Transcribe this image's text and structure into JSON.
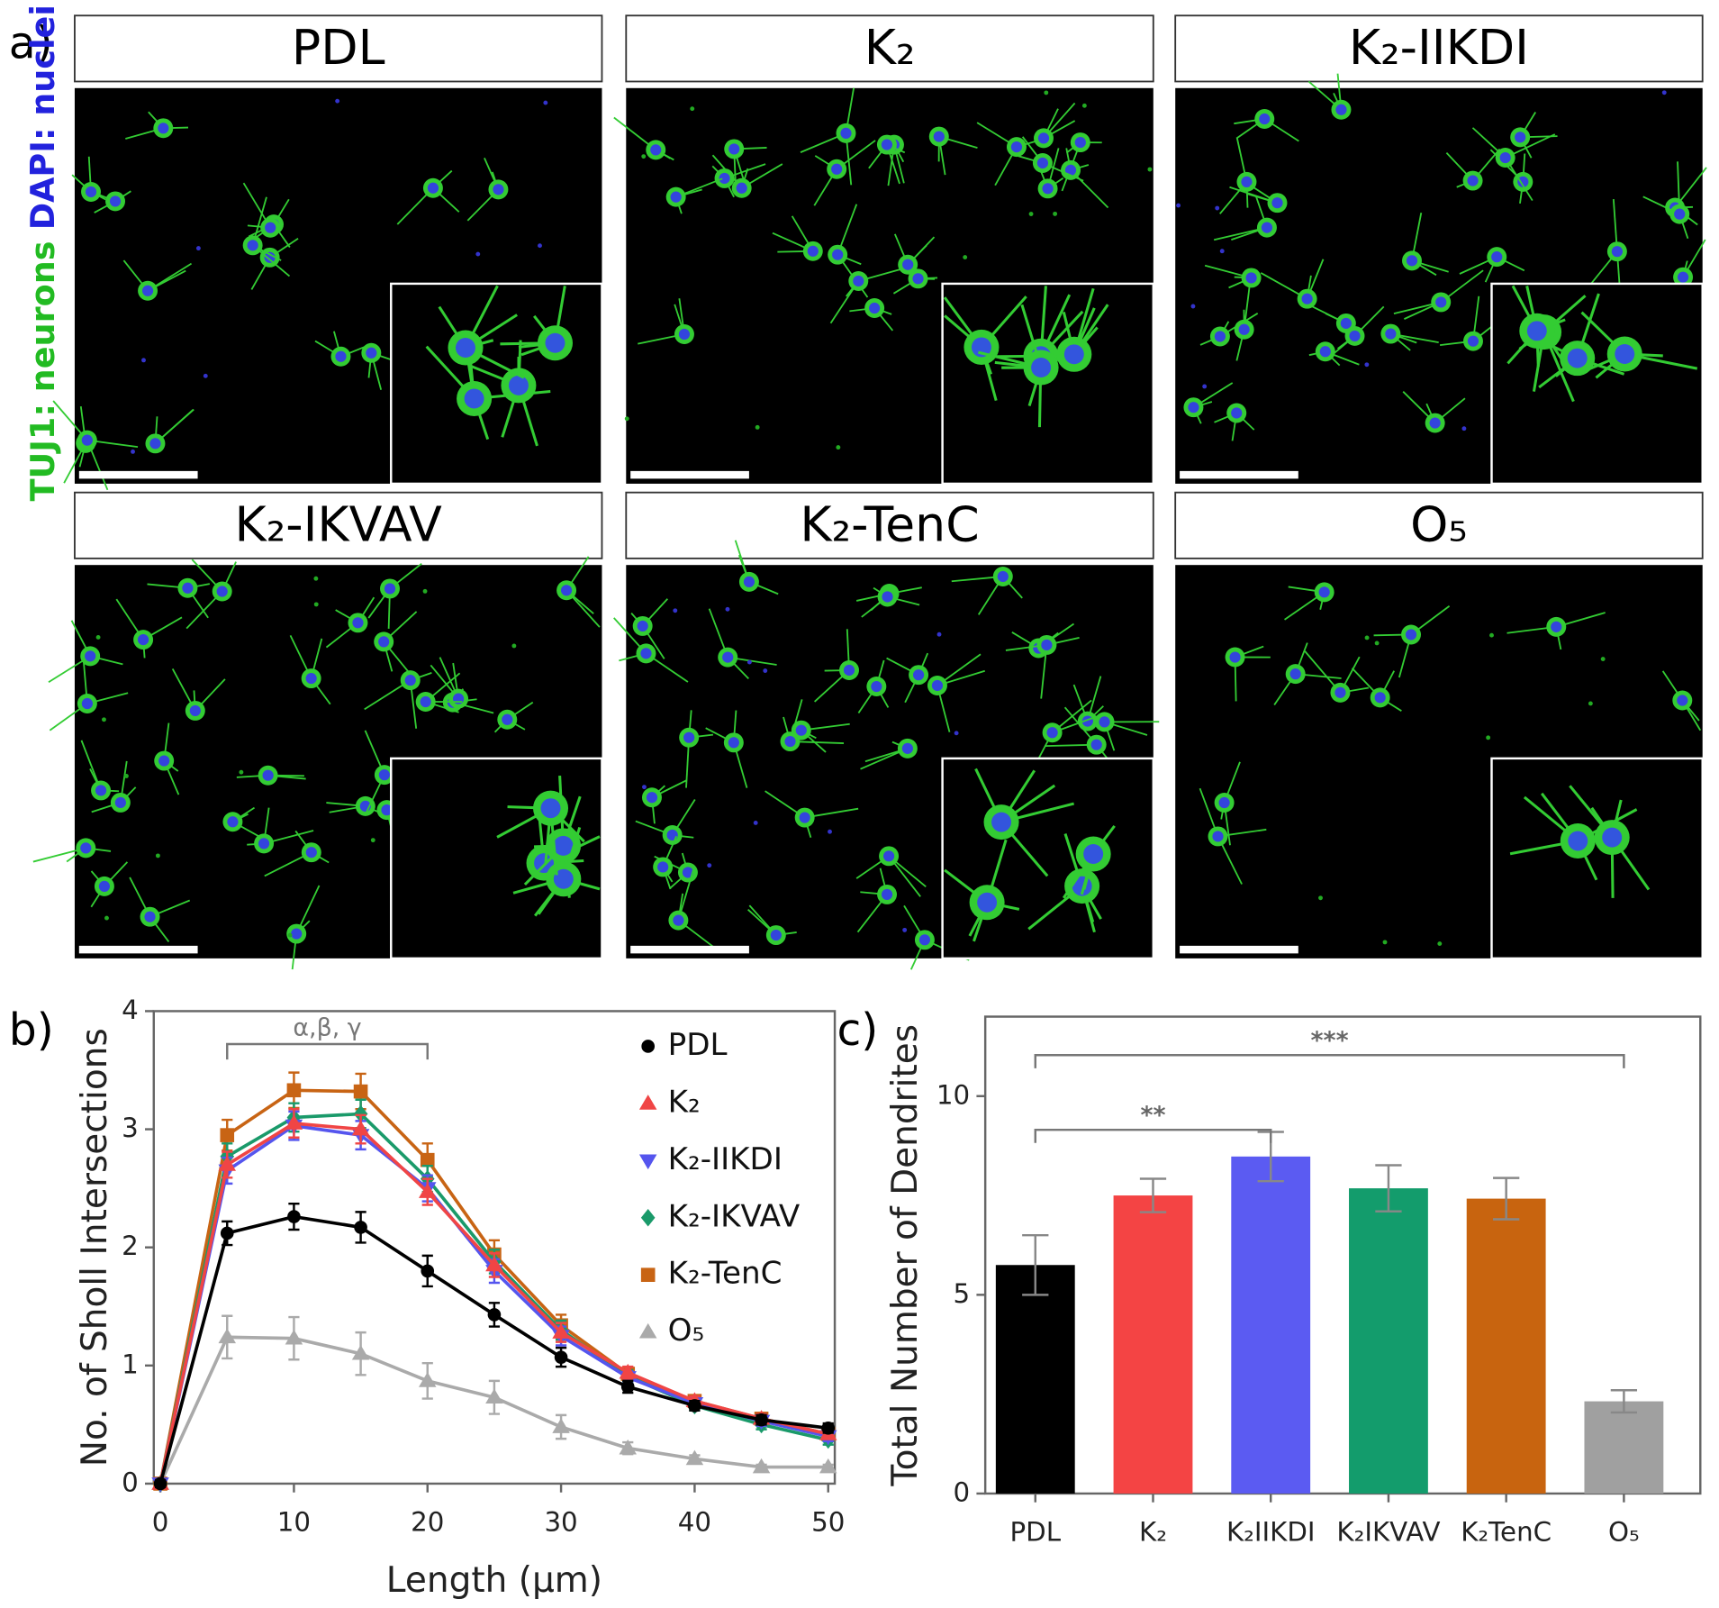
{
  "panel_a": {
    "label": "a)",
    "stain_green": "TUJ1: neurons",
    "stain_blue": "DAPI: nuclei",
    "images": [
      "PDL",
      "K₂",
      "K₂-IIKDI",
      "K₂-IKVAV",
      "K₂-TenC",
      "O₅"
    ]
  },
  "chart_data": [
    {
      "type": "line",
      "panel_label": "b)",
      "x_label": "Length (µm)",
      "y_label": "No. of Sholl Intersections",
      "x": [
        0,
        5,
        10,
        15,
        20,
        25,
        30,
        35,
        40,
        45,
        50
      ],
      "series": [
        {
          "name": "PDL",
          "color": "#000000",
          "marker": "circle",
          "values": [
            0,
            2.12,
            2.26,
            2.17,
            1.8,
            1.43,
            1.07,
            0.82,
            0.66,
            0.54,
            0.47
          ],
          "errors": [
            0.03,
            0.1,
            0.11,
            0.13,
            0.13,
            0.1,
            0.08,
            0.05,
            0.04,
            0.04,
            0.04
          ]
        },
        {
          "name": "K₂",
          "color": "#f04545",
          "marker": "triangle-up",
          "values": [
            0,
            2.7,
            3.05,
            3.0,
            2.47,
            1.85,
            1.28,
            0.94,
            0.7,
            0.55,
            0.42
          ],
          "errors": [
            0.03,
            0.11,
            0.12,
            0.12,
            0.11,
            0.1,
            0.08,
            0.05,
            0.04,
            0.04,
            0.04
          ]
        },
        {
          "name": "K₂-IIKDI",
          "color": "#5555ee",
          "marker": "triangle-down",
          "values": [
            0,
            2.65,
            3.03,
            2.95,
            2.5,
            1.8,
            1.25,
            0.9,
            0.68,
            0.53,
            0.4
          ],
          "errors": [
            0.03,
            0.11,
            0.12,
            0.12,
            0.11,
            0.1,
            0.08,
            0.05,
            0.04,
            0.04,
            0.04
          ]
        },
        {
          "name": "K₂-IKVAV",
          "color": "#1a9a6a",
          "marker": "diamond",
          "values": [
            0,
            2.77,
            3.1,
            3.13,
            2.58,
            1.88,
            1.3,
            0.91,
            0.66,
            0.5,
            0.37
          ],
          "errors": [
            0.03,
            0.11,
            0.12,
            0.12,
            0.11,
            0.1,
            0.08,
            0.05,
            0.04,
            0.04,
            0.04
          ]
        },
        {
          "name": "K₂-TenC",
          "color": "#c86414",
          "marker": "square",
          "values": [
            0,
            2.95,
            3.33,
            3.32,
            2.74,
            1.94,
            1.34,
            0.93,
            0.7,
            0.55,
            0.42
          ],
          "errors": [
            0.03,
            0.13,
            0.15,
            0.15,
            0.14,
            0.12,
            0.09,
            0.05,
            0.04,
            0.04,
            0.04
          ]
        },
        {
          "name": "O₅",
          "color": "#aaaaaa",
          "marker": "triangle-up",
          "values": [
            0,
            1.24,
            1.23,
            1.1,
            0.87,
            0.73,
            0.48,
            0.3,
            0.21,
            0.14,
            0.14
          ],
          "errors": [
            0.03,
            0.18,
            0.18,
            0.18,
            0.15,
            0.14,
            0.1,
            0.05,
            0.03,
            0.02,
            0.02
          ]
        }
      ],
      "xlim": [
        0,
        50
      ],
      "xticks": [
        0,
        10,
        20,
        30,
        40,
        50
      ],
      "ylim": [
        0,
        4
      ],
      "yticks": [
        0,
        1,
        2,
        3,
        4
      ],
      "annotation": {
        "text": "α,β, γ",
        "x": [
          5,
          20
        ]
      }
    },
    {
      "type": "bar",
      "panel_label": "c)",
      "y_label": "Total Number of Dendrites",
      "categories": [
        "PDL",
        "K₂",
        "K₂IIKDI",
        "K₂IKVAV",
        "K₂TenC",
        "O₅"
      ],
      "values": [
        5.75,
        7.5,
        8.48,
        7.68,
        7.42,
        2.32
      ],
      "errors": [
        0.75,
        0.42,
        0.62,
        0.58,
        0.52,
        0.28
      ],
      "colors": [
        "#000000",
        "#f44444",
        "#5b5bf2",
        "#139c6c",
        "#c8640f",
        "#a0a0a0"
      ],
      "ylim": [
        0,
        12
      ],
      "yticks": [
        0,
        5,
        10
      ],
      "significance": [
        {
          "text": "**",
          "from": 0,
          "to": 2
        },
        {
          "text": "***",
          "from": 0,
          "to": 5
        }
      ]
    }
  ]
}
